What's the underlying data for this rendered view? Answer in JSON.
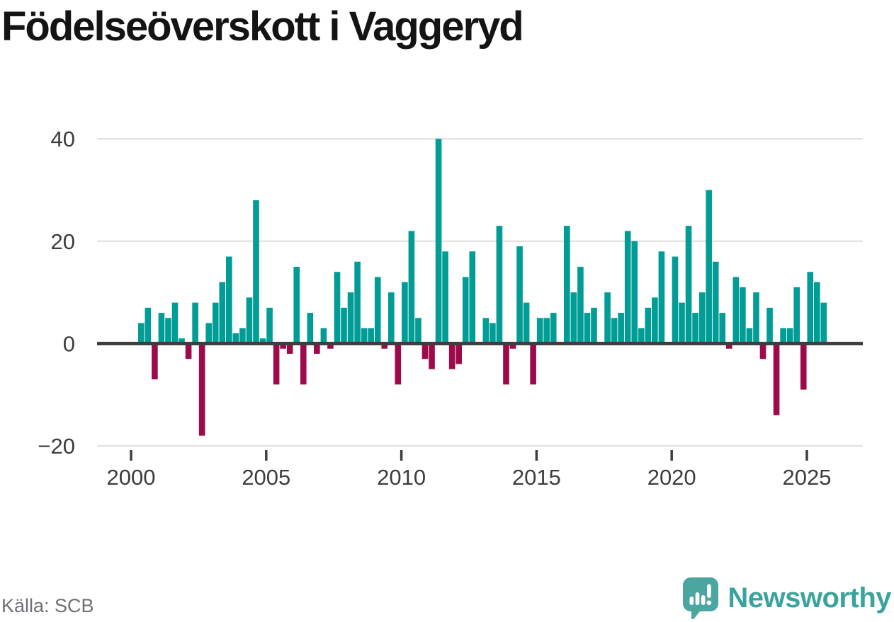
{
  "title": "Födelseöverskott i Vaggeryd",
  "source": "Källa: SCB",
  "brand": {
    "name": "Newsworthy"
  },
  "colors": {
    "positive": "#009c95",
    "negative": "#9d0a49",
    "grid": "#e4e4e4",
    "axis": "#3e3e3e",
    "tick_text": "#3d3d3d",
    "muted_text": "#6f6f78",
    "brand_teal": "#3ba39d",
    "brand_icon_teal": "#4ba6a1"
  },
  "chart_data": {
    "type": "bar",
    "title": "Födelseöverskott i Vaggeryd",
    "xlabel": "",
    "ylabel": "",
    "frequency": "quarterly",
    "ylim": [
      -20,
      42
    ],
    "grid": "horizontal",
    "y_ticks": [
      40,
      20,
      0,
      -20
    ],
    "y_tick_labels": [
      "40",
      "20",
      "0",
      "−20"
    ],
    "x_tick_years": [
      2000,
      2005,
      2010,
      2015,
      2020,
      2025
    ],
    "x_tick_labels": [
      "2000",
      "2005",
      "2010",
      "2015",
      "2020",
      "2025"
    ],
    "points": [
      [
        "2000Q2",
        4
      ],
      [
        "2000Q3",
        7
      ],
      [
        "2000Q4",
        -7
      ],
      [
        "2001Q1",
        6
      ],
      [
        "2001Q2",
        5
      ],
      [
        "2001Q3",
        8
      ],
      [
        "2001Q4",
        1
      ],
      [
        "2002Q1",
        -3
      ],
      [
        "2002Q2",
        8
      ],
      [
        "2002Q3",
        -18
      ],
      [
        "2002Q4",
        4
      ],
      [
        "2003Q1",
        8
      ],
      [
        "2003Q2",
        12
      ],
      [
        "2003Q3",
        17
      ],
      [
        "2003Q4",
        2
      ],
      [
        "2004Q1",
        3
      ],
      [
        "2004Q2",
        9
      ],
      [
        "2004Q3",
        28
      ],
      [
        "2004Q4",
        1
      ],
      [
        "2005Q1",
        7
      ],
      [
        "2005Q2",
        -8
      ],
      [
        "2005Q3",
        -1
      ],
      [
        "2005Q4",
        -2
      ],
      [
        "2006Q1",
        15
      ],
      [
        "2006Q2",
        -8
      ],
      [
        "2006Q3",
        6
      ],
      [
        "2006Q4",
        -2
      ],
      [
        "2007Q1",
        3
      ],
      [
        "2007Q2",
        -1
      ],
      [
        "2007Q3",
        14
      ],
      [
        "2007Q4",
        7
      ],
      [
        "2008Q1",
        10
      ],
      [
        "2008Q2",
        16
      ],
      [
        "2008Q3",
        3
      ],
      [
        "2008Q4",
        3
      ],
      [
        "2009Q1",
        13
      ],
      [
        "2009Q2",
        -1
      ],
      [
        "2009Q3",
        10
      ],
      [
        "2009Q4",
        -8
      ],
      [
        "2010Q1",
        12
      ],
      [
        "2010Q2",
        22
      ],
      [
        "2010Q3",
        5
      ],
      [
        "2010Q4",
        -3
      ],
      [
        "2011Q1",
        -5
      ],
      [
        "2011Q2",
        40
      ],
      [
        "2011Q3",
        18
      ],
      [
        "2011Q4",
        -5
      ],
      [
        "2012Q1",
        -4
      ],
      [
        "2012Q2",
        13
      ],
      [
        "2012Q3",
        18
      ],
      [
        "2012Q4",
        0
      ],
      [
        "2013Q1",
        5
      ],
      [
        "2013Q2",
        4
      ],
      [
        "2013Q3",
        23
      ],
      [
        "2013Q4",
        -8
      ],
      [
        "2014Q1",
        -1
      ],
      [
        "2014Q2",
        19
      ],
      [
        "2014Q3",
        8
      ],
      [
        "2014Q4",
        -8
      ],
      [
        "2015Q1",
        5
      ],
      [
        "2015Q2",
        5
      ],
      [
        "2015Q3",
        6
      ],
      [
        "2015Q4",
        0
      ],
      [
        "2016Q1",
        23
      ],
      [
        "2016Q2",
        10
      ],
      [
        "2016Q3",
        15
      ],
      [
        "2016Q4",
        6
      ],
      [
        "2017Q1",
        7
      ],
      [
        "2017Q2",
        0
      ],
      [
        "2017Q3",
        10
      ],
      [
        "2017Q4",
        5
      ],
      [
        "2018Q1",
        6
      ],
      [
        "2018Q2",
        22
      ],
      [
        "2018Q3",
        20
      ],
      [
        "2018Q4",
        3
      ],
      [
        "2019Q1",
        7
      ],
      [
        "2019Q2",
        9
      ],
      [
        "2019Q3",
        18
      ],
      [
        "2019Q4",
        0
      ],
      [
        "2020Q1",
        17
      ],
      [
        "2020Q2",
        8
      ],
      [
        "2020Q3",
        23
      ],
      [
        "2020Q4",
        6
      ],
      [
        "2021Q1",
        10
      ],
      [
        "2021Q2",
        30
      ],
      [
        "2021Q3",
        16
      ],
      [
        "2021Q4",
        6
      ],
      [
        "2022Q1",
        -1
      ],
      [
        "2022Q2",
        13
      ],
      [
        "2022Q3",
        11
      ],
      [
        "2022Q4",
        3
      ],
      [
        "2023Q1",
        10
      ],
      [
        "2023Q2",
        -3
      ],
      [
        "2023Q3",
        7
      ],
      [
        "2023Q4",
        -14
      ],
      [
        "2024Q1",
        3
      ],
      [
        "2024Q2",
        3
      ],
      [
        "2024Q3",
        11
      ],
      [
        "2024Q4",
        -9
      ],
      [
        "2025Q1",
        14
      ],
      [
        "2025Q2",
        12
      ],
      [
        "2025Q3",
        8
      ]
    ]
  }
}
